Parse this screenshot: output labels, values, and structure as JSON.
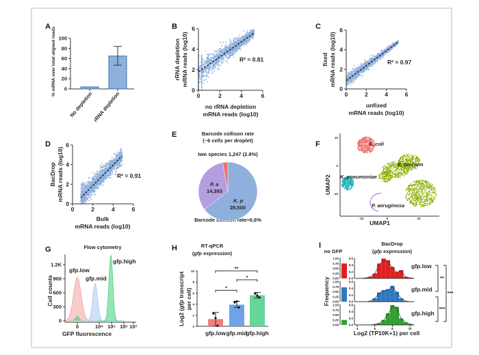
{
  "colors": {
    "scatter": "#8fb0dc",
    "bar_blue": "#8fb0dc",
    "fit_line": "#111111",
    "red": "#f08080",
    "blue": "#a8c8f0",
    "green": "#5dd68a",
    "pie_kp": "#8fb0dc",
    "pie_pa": "#b59ee0",
    "pie_two": "#f07070"
  },
  "panel_letters": [
    "A",
    "B",
    "C",
    "D",
    "E",
    "F",
    "G",
    "H",
    "I"
  ],
  "chart_data": [
    {
      "panel": "A",
      "type": "bar",
      "categories": [
        "No depletion",
        "rRNA depletion"
      ],
      "values": [
        4,
        65
      ],
      "error": [
        null,
        [
          47,
          84
        ]
      ],
      "ylabel": "% mRNA over total aligned reads",
      "ylim": [
        0,
        100
      ],
      "yticks": [
        0,
        20,
        40,
        60,
        80,
        100
      ]
    },
    {
      "panel": "B",
      "type": "scatter",
      "xlabel": [
        "no rRNA depletion",
        "mRNA reads (log10)"
      ],
      "ylabel": [
        "rRNA depletion",
        "mRNA reads (log10)"
      ],
      "xlim": [
        0,
        6
      ],
      "ylim": [
        0,
        6
      ],
      "ticks": [
        0,
        2,
        4,
        6
      ],
      "fit": [
        [
          0,
          1.8
        ],
        [
          5.2,
          5.6
        ]
      ],
      "r2_label": "R² = 0.81"
    },
    {
      "panel": "C",
      "type": "scatter",
      "xlabel": [
        "unfixed",
        "mRNA reads (log10)"
      ],
      "ylabel": [
        "fixed",
        "mRNA reads (log10)"
      ],
      "xlim": [
        0,
        6
      ],
      "ylim": [
        0,
        6
      ],
      "ticks": [
        0,
        2,
        4,
        6
      ],
      "fit": [
        [
          0,
          0.85
        ],
        [
          5.2,
          4.8
        ]
      ],
      "r2_label": "R² = 0.97"
    },
    {
      "panel": "D",
      "type": "scatter",
      "xlabel": [
        "Bulk",
        "mRNA reads (log10)"
      ],
      "ylabel": [
        "BacDrop",
        "mRNA reads (log10)"
      ],
      "xlim": [
        0,
        6
      ],
      "ylim": [
        0,
        6
      ],
      "ticks": [
        0,
        2,
        4,
        6
      ],
      "fit": [
        [
          0.8,
          0.6
        ],
        [
          4.9,
          4.9
        ]
      ],
      "r2_label": "R² = 0.91"
    },
    {
      "panel": "E",
      "type": "pie",
      "title": [
        "Barcode collison rate",
        "(~6 cells per droplet)"
      ],
      "top_label": "two species 1,247 (2.8%)",
      "bottom_label": "Barcode collison rate=6,6%",
      "slices": [
        {
          "name": "K. p",
          "value": 28500,
          "label": "28,500"
        },
        {
          "name": "P. a",
          "value": 14393,
          "label": "14,393"
        },
        {
          "name": "two species",
          "value": 1247,
          "label": ""
        }
      ]
    },
    {
      "panel": "F",
      "type": "scatter",
      "xlabel": "UMAP1",
      "ylabel": "UMAP2",
      "clusters": [
        {
          "name": "E. coli",
          "color": "#f07070"
        },
        {
          "name": "E. faecium",
          "color": "#8ab000"
        },
        {
          "name": "K. pneumoniae",
          "color": "#10b0b8"
        },
        {
          "name": "P. aeruginosa",
          "color": "#c890f0"
        }
      ]
    },
    {
      "panel": "G",
      "type": "area",
      "title": "Flow cytometry",
      "xlabel": "GFP fluorescence",
      "ylabel": "Cell counts",
      "yticks": [
        {
          "v": 0,
          "l": "0"
        },
        {
          "v": 300,
          "l": "300"
        },
        {
          "v": 600,
          "l": "600"
        },
        {
          "v": 900,
          "l": "900"
        },
        {
          "v": 1200,
          "l": "1.2K"
        }
      ],
      "xticks": [
        "0",
        "10⁴",
        "10⁵",
        "10⁶",
        "10⁷"
      ],
      "series": [
        {
          "name": "gfp.low",
          "peak_count": 930,
          "peak_x": "0",
          "color": "#f4a0a0"
        },
        {
          "name": "gfp.mid",
          "peak_count": 800,
          "peak_x": "10^3.7",
          "color": "#a8c8f0"
        },
        {
          "name": "gfp.high",
          "peak_count": 1400,
          "peak_x": "10^4.9",
          "color": "#40d080"
        }
      ]
    },
    {
      "panel": "H",
      "type": "bar",
      "title": [
        "RT-qPCR",
        "(",
        "gfp",
        " expression)"
      ],
      "ylabel": [
        "Log2 (",
        "gfp",
        " transcript",
        "per cell)"
      ],
      "categories": [
        "gfp.low",
        "gfp.mid",
        "gfp.high"
      ],
      "values": [
        1.3,
        3.9,
        5.6
      ],
      "error": [
        [
          0,
          2.5
        ],
        [
          3.4,
          4.5
        ],
        [
          5.1,
          6.1
        ]
      ],
      "points": [
        [
          2.3,
          1.5,
          0.1
        ],
        [
          4.3,
          4.5,
          3.4
        ],
        [
          5.9,
          5.5,
          5.2
        ]
      ],
      "colors": [
        "#f47c7c",
        "#6fa3e8",
        "#66d699"
      ],
      "ylim": [
        0,
        10
      ],
      "yticks": [
        0,
        2,
        4,
        6,
        8,
        10
      ],
      "significance": [
        {
          "pair": [
            0,
            1
          ],
          "label": "*"
        },
        {
          "pair": [
            1,
            2
          ],
          "label": "*"
        },
        {
          "pair": [
            0,
            2
          ],
          "label": "**"
        }
      ]
    },
    {
      "panel": "I",
      "type": "bar",
      "title": [
        "BacDrop",
        "(",
        "gfp",
        " expression)"
      ],
      "no_gfp_label": "no GFP",
      "ylabel": "Frequency",
      "xlabel": "Log2 (TP10K+1) per cell",
      "xticks": [
        4,
        6,
        8,
        10
      ],
      "nogfp_ticks": [
        "0.00",
        "0.25",
        "0.50",
        "0.75",
        "1.00"
      ],
      "hist_ticks": [
        "0.0",
        "0.2",
        "0.4",
        "0.6"
      ],
      "bins": [
        5,
        5.5,
        6,
        6.5,
        7,
        7.5,
        8,
        8.5,
        9,
        9.5,
        10
      ],
      "series": [
        {
          "name": "gfp.low",
          "color": "#e02020",
          "no_gfp": 0.75,
          "values": [
            0.02,
            0.05,
            0.15,
            0.45,
            0.6,
            0.55,
            0.35,
            0.2,
            0.25,
            0.05,
            0.02
          ]
        },
        {
          "name": "gfp.mid",
          "color": "#2f78c0",
          "no_gfp": 0.72,
          "values": [
            0,
            0.02,
            0.1,
            0.28,
            0.35,
            0.38,
            0.48,
            0.3,
            0.1,
            0.02,
            0
          ]
        },
        {
          "name": "gfp.high",
          "color": "#30a030",
          "no_gfp": 0.25,
          "values": [
            0,
            0,
            0.02,
            0.05,
            0.15,
            0.35,
            0.6,
            0.55,
            0.2,
            0.08,
            0.03
          ]
        }
      ],
      "significance": [
        {
          "pair": [
            0,
            1
          ],
          "label": "**"
        },
        {
          "pair": [
            1,
            2
          ],
          "label": "***"
        },
        {
          "pair": [
            0,
            2
          ],
          "label": "***"
        }
      ]
    }
  ]
}
